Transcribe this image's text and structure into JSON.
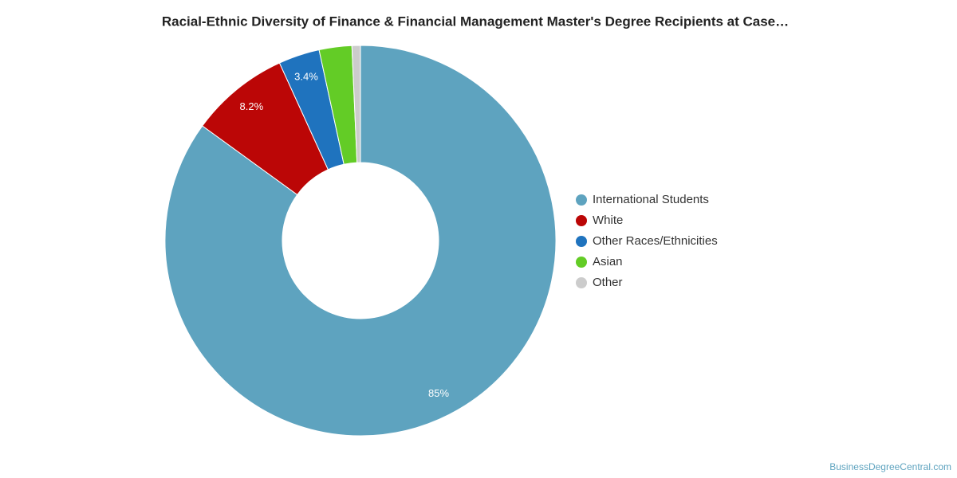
{
  "chart_data": {
    "type": "donut",
    "title": "Racial-Ethnic Diversity of Finance & Financial Management Master's Degree Recipients at Case…",
    "categories": [
      "International Students",
      "White",
      "Other Races/Ethnicities",
      "Asian",
      "Other"
    ],
    "values": [
      85,
      8.2,
      3.4,
      2.7,
      0.7
    ],
    "value_labels": [
      "85%",
      "8.2%",
      "3.4%",
      null,
      null
    ],
    "colors": [
      "#5ea3bf",
      "#bb0606",
      "#1f73be",
      "#63cc26",
      "#cccccc"
    ],
    "legend": "right",
    "source": "BusinessDegreeCentral.com"
  }
}
